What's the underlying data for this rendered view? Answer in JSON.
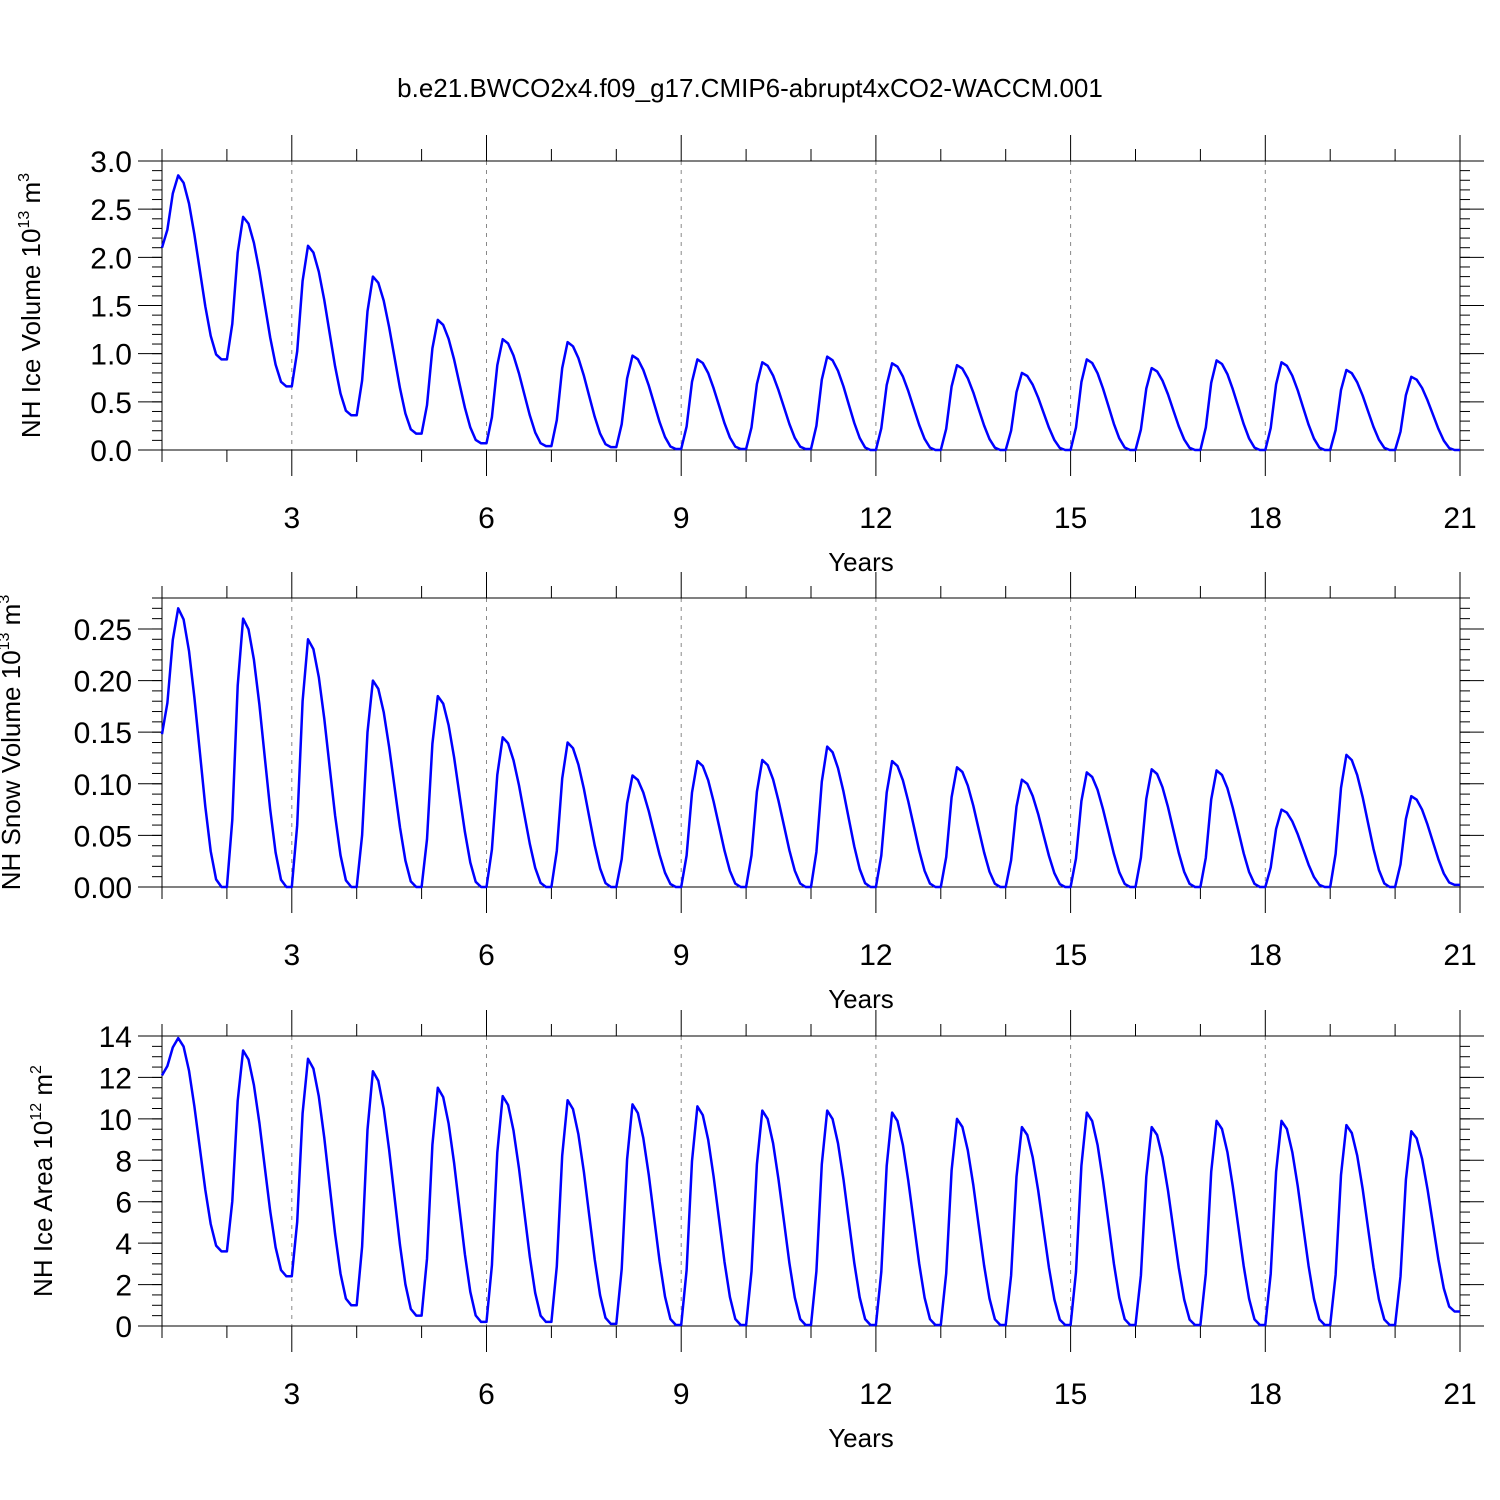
{
  "chart_data": {
    "type": "line",
    "title": "b.e21.BWCO2x4.f09_g17.CMIP6-abrupt4xCO2-WACCM.001",
    "xlim": [
      1,
      21
    ],
    "x_ticks": [
      3,
      6,
      9,
      12,
      15,
      18,
      21
    ],
    "x_grid_dashed": [
      3,
      6,
      9,
      12,
      15,
      18
    ],
    "x_start": 1,
    "x_step_months": 12,
    "color": "#0000ff",
    "panels": [
      {
        "id": "ice-volume",
        "ylabel": "NH Ice Volume 10",
        "ylabel_sup": "13",
        "ylabel_unit": " m",
        "ylabel_unit_sup": "3",
        "xlabel": "Years",
        "ylim": [
          0,
          3.0
        ],
        "y_ticks": [
          0.0,
          0.5,
          1.0,
          1.5,
          2.0,
          2.5,
          3.0
        ],
        "y_tick_labels": [
          "0.0",
          "0.5",
          "1.0",
          "1.5",
          "2.0",
          "2.5",
          "3.0"
        ],
        "y_minor_step": 0.1,
        "peaks": [
          2.85,
          2.42,
          2.12,
          1.8,
          1.35,
          1.15,
          1.12,
          0.98,
          0.94,
          0.91,
          0.97,
          0.9,
          0.88,
          0.8,
          0.94,
          0.85,
          0.93,
          0.91,
          0.83,
          0.76
        ],
        "troughs": [
          2.1,
          0.94,
          0.66,
          0.36,
          0.17,
          0.07,
          0.04,
          0.03,
          0.01,
          0.01,
          0.01,
          0.0,
          0.0,
          0.0,
          0.0,
          0.0,
          0.0,
          0.0,
          0.0,
          0.0,
          0.0
        ]
      },
      {
        "id": "snow-volume",
        "ylabel": "NH Snow Volume 10",
        "ylabel_sup": "13",
        "ylabel_unit": " m",
        "ylabel_unit_sup": "3",
        "xlabel": "Years",
        "ylim": [
          0,
          0.28
        ],
        "y_ticks": [
          0.0,
          0.05,
          0.1,
          0.15,
          0.2,
          0.25
        ],
        "y_tick_labels": [
          "0.00",
          "0.05",
          "0.10",
          "0.15",
          "0.20",
          "0.25"
        ],
        "y_minor_step": 0.01,
        "peaks": [
          0.27,
          0.26,
          0.24,
          0.2,
          0.185,
          0.145,
          0.14,
          0.108,
          0.122,
          0.123,
          0.136,
          0.122,
          0.116,
          0.104,
          0.111,
          0.114,
          0.113,
          0.075,
          0.128,
          0.088
        ],
        "troughs": [
          0.148,
          0.0,
          0.0,
          0.0,
          0.0,
          0.0,
          0.0,
          0.0,
          0.0,
          0.0,
          0.0,
          0.0,
          0.0,
          0.0,
          0.0,
          0.0,
          0.0,
          0.0,
          0.0,
          0.0,
          0.002
        ]
      },
      {
        "id": "ice-area",
        "ylabel": "NH Ice Area 10",
        "ylabel_sup": "12",
        "ylabel_unit": " m",
        "ylabel_unit_sup": "2",
        "xlabel": "Years",
        "ylim": [
          0,
          14
        ],
        "y_ticks": [
          0,
          2,
          4,
          6,
          8,
          10,
          12,
          14
        ],
        "y_tick_labels": [
          "0",
          "2",
          "4",
          "6",
          "8",
          "10",
          "12",
          "14"
        ],
        "y_minor_step": 0.5,
        "peaks": [
          13.9,
          13.3,
          12.9,
          12.3,
          11.5,
          11.1,
          10.9,
          10.7,
          10.6,
          10.4,
          10.4,
          10.3,
          10.0,
          9.6,
          10.3,
          9.6,
          9.9,
          9.9,
          9.7,
          9.4
        ],
        "troughs": [
          12.1,
          3.6,
          2.4,
          1.0,
          0.5,
          0.2,
          0.2,
          0.1,
          0.05,
          0.05,
          0.05,
          0.05,
          0.05,
          0.05,
          0.05,
          0.05,
          0.05,
          0.05,
          0.05,
          0.05,
          0.7
        ]
      }
    ]
  }
}
